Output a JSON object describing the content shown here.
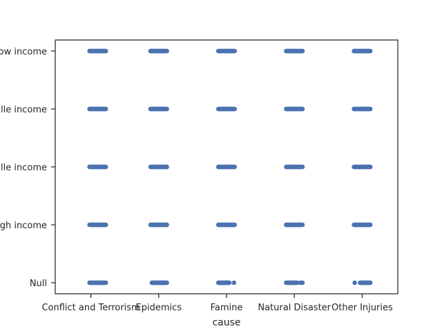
{
  "chart_data": {
    "type": "scatter",
    "subtype": "strip",
    "xlabel": "cause",
    "ylabel": "",
    "categories": [
      "Conflict and Terrorism",
      "Epidemics",
      "Famine",
      "Natural Disaster",
      "Other Injuries"
    ],
    "y_categories": [
      "Low income",
      "Lower middle income",
      "Upper middle income",
      "High income",
      "Null"
    ],
    "y_tick_labels_visible": [
      "ow income",
      "lle income",
      "lle income",
      "gh income",
      "Null"
    ],
    "grid": false,
    "legend": "none",
    "marker_color": "#4c72b0",
    "strips": [
      {
        "cause": "Conflict and Terrorism",
        "income": "Low income",
        "jitter_min": -0.02,
        "jitter_max": 0.22
      },
      {
        "cause": "Conflict and Terrorism",
        "income": "Lower middle income",
        "jitter_min": -0.02,
        "jitter_max": 0.22
      },
      {
        "cause": "Conflict and Terrorism",
        "income": "Upper middle income",
        "jitter_min": -0.02,
        "jitter_max": 0.22
      },
      {
        "cause": "Conflict and Terrorism",
        "income": "High income",
        "jitter_min": -0.02,
        "jitter_max": 0.22
      },
      {
        "cause": "Conflict and Terrorism",
        "income": "Null",
        "jitter_min": -0.02,
        "jitter_max": 0.22
      },
      {
        "cause": "Epidemics",
        "income": "Low income",
        "jitter_min": -0.12,
        "jitter_max": 0.12
      },
      {
        "cause": "Epidemics",
        "income": "Lower middle income",
        "jitter_min": -0.12,
        "jitter_max": 0.12
      },
      {
        "cause": "Epidemics",
        "income": "Upper middle income",
        "jitter_min": -0.12,
        "jitter_max": 0.12
      },
      {
        "cause": "Epidemics",
        "income": "High income",
        "jitter_min": -0.12,
        "jitter_max": 0.12
      },
      {
        "cause": "Epidemics",
        "income": "Null",
        "jitter_min": -0.1,
        "jitter_max": 0.12
      },
      {
        "cause": "Famine",
        "income": "Low income",
        "jitter_min": -0.12,
        "jitter_max": 0.12
      },
      {
        "cause": "Famine",
        "income": "Lower middle income",
        "jitter_min": -0.12,
        "jitter_max": 0.12
      },
      {
        "cause": "Famine",
        "income": "Upper middle income",
        "jitter_min": -0.12,
        "jitter_max": 0.12
      },
      {
        "cause": "Famine",
        "income": "High income",
        "jitter_min": -0.12,
        "jitter_max": 0.12
      },
      {
        "cause": "Famine",
        "income": "Null",
        "jitter_min": -0.12,
        "jitter_max": 0.04,
        "extra_points": [
          0.11
        ]
      },
      {
        "cause": "Natural Disaster",
        "income": "Low income",
        "jitter_min": -0.12,
        "jitter_max": 0.12
      },
      {
        "cause": "Natural Disaster",
        "income": "Lower middle income",
        "jitter_min": -0.12,
        "jitter_max": 0.12
      },
      {
        "cause": "Natural Disaster",
        "income": "Upper middle income",
        "jitter_min": -0.12,
        "jitter_max": 0.12
      },
      {
        "cause": "Natural Disaster",
        "income": "High income",
        "jitter_min": -0.12,
        "jitter_max": 0.12
      },
      {
        "cause": "Natural Disaster",
        "income": "Null",
        "jitter_min": -0.12,
        "jitter_max": 0.04,
        "extra_points": [
          0.09,
          0.12
        ]
      },
      {
        "cause": "Other Injuries",
        "income": "Low income",
        "jitter_min": -0.12,
        "jitter_max": 0.12
      },
      {
        "cause": "Other Injuries",
        "income": "Lower middle income",
        "jitter_min": -0.12,
        "jitter_max": 0.12
      },
      {
        "cause": "Other Injuries",
        "income": "Upper middle income",
        "jitter_min": -0.12,
        "jitter_max": 0.12
      },
      {
        "cause": "Other Injuries",
        "income": "High income",
        "jitter_min": -0.12,
        "jitter_max": 0.12
      },
      {
        "cause": "Other Injuries",
        "income": "Null",
        "jitter_min": -0.03,
        "jitter_max": 0.12,
        "extra_points": [
          -0.11
        ]
      }
    ]
  }
}
